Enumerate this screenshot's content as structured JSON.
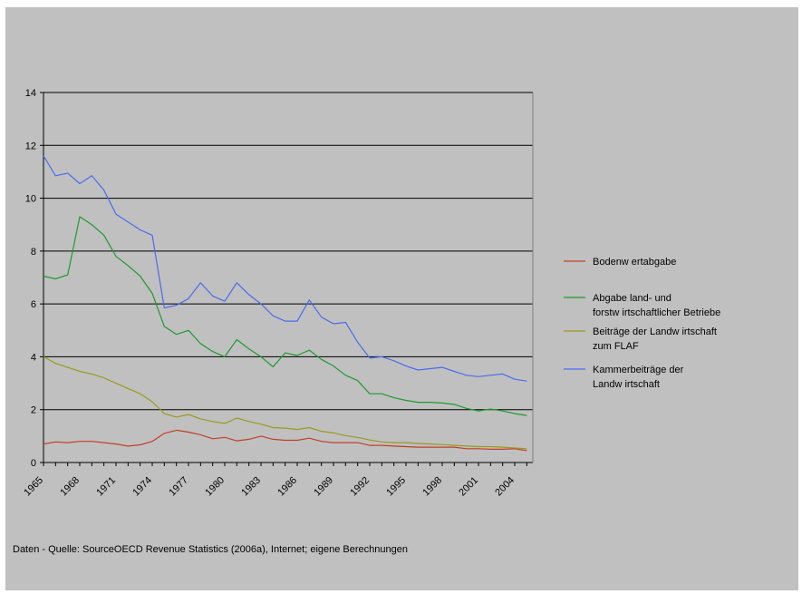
{
  "chart_data": {
    "type": "line",
    "ylim": [
      0,
      14
    ],
    "y_ticks": [
      0,
      2,
      4,
      6,
      8,
      10,
      12,
      14
    ],
    "x": [
      1965,
      1966,
      1967,
      1968,
      1969,
      1970,
      1971,
      1972,
      1973,
      1974,
      1975,
      1976,
      1977,
      1978,
      1979,
      1980,
      1981,
      1982,
      1983,
      1984,
      1985,
      1986,
      1987,
      1988,
      1989,
      1990,
      1991,
      1992,
      1993,
      1994,
      1995,
      1996,
      1997,
      1998,
      1999,
      2000,
      2001,
      2002,
      2003,
      2004,
      2005
    ],
    "x_tick_labels": [
      "1965",
      "1968",
      "1971",
      "1974",
      "1977",
      "1980",
      "1983",
      "1986",
      "1989",
      "1992",
      "1995",
      "1998",
      "2001",
      "2004"
    ],
    "grid": "horizontal",
    "legend_position": "right",
    "series": [
      {
        "name": "Bodenw ertabgabe",
        "color": "#c0402a",
        "values": [
          0.7,
          0.78,
          0.75,
          0.8,
          0.8,
          0.75,
          0.7,
          0.62,
          0.67,
          0.8,
          1.1,
          1.22,
          1.15,
          1.05,
          0.9,
          0.95,
          0.82,
          0.88,
          1.0,
          0.88,
          0.84,
          0.84,
          0.92,
          0.8,
          0.75,
          0.75,
          0.75,
          0.65,
          0.65,
          0.62,
          0.6,
          0.58,
          0.58,
          0.58,
          0.58,
          0.52,
          0.52,
          0.5,
          0.5,
          0.52,
          0.45
        ]
      },
      {
        "name": "Abgabe land- und forstw irtschaftlicher Betriebe",
        "color": "#1f9a2e",
        "values": [
          7.05,
          6.95,
          7.1,
          9.3,
          9.0,
          8.6,
          7.8,
          7.45,
          7.05,
          6.4,
          5.15,
          4.85,
          5.0,
          4.5,
          4.2,
          4.0,
          4.65,
          4.3,
          4.0,
          3.62,
          4.15,
          4.05,
          4.25,
          3.9,
          3.65,
          3.3,
          3.1,
          2.6,
          2.6,
          2.45,
          2.35,
          2.28,
          2.28,
          2.25,
          2.2,
          2.05,
          1.95,
          2.02,
          1.95,
          1.85,
          1.78
        ]
      },
      {
        "name": "Beiträge der Landw irtschaft zum FLAF",
        "color": "#9a9a1e",
        "values": [
          4.0,
          3.75,
          3.6,
          3.45,
          3.35,
          3.2,
          3.0,
          2.8,
          2.6,
          2.3,
          1.85,
          1.72,
          1.82,
          1.65,
          1.55,
          1.48,
          1.68,
          1.55,
          1.45,
          1.32,
          1.3,
          1.25,
          1.32,
          1.18,
          1.12,
          1.02,
          0.95,
          0.85,
          0.78,
          0.75,
          0.75,
          0.72,
          0.7,
          0.68,
          0.65,
          0.62,
          0.6,
          0.6,
          0.58,
          0.55,
          0.52
        ]
      },
      {
        "name": "Kammerbeiträge der Landw irtschaft",
        "color": "#4a6cf0",
        "values": [
          11.6,
          10.85,
          10.95,
          10.55,
          10.85,
          10.3,
          9.4,
          9.1,
          8.8,
          8.6,
          5.85,
          5.95,
          6.2,
          6.8,
          6.3,
          6.1,
          6.8,
          6.35,
          6.0,
          5.55,
          5.35,
          5.35,
          6.15,
          5.5,
          5.25,
          5.3,
          4.55,
          3.95,
          4.0,
          3.85,
          3.65,
          3.5,
          3.55,
          3.6,
          3.45,
          3.3,
          3.25,
          3.3,
          3.35,
          3.15,
          3.08
        ]
      }
    ]
  },
  "legend": {
    "item1": [
      "Bodenw ertabgabe"
    ],
    "item2": [
      "Abgabe land- und",
      "forstw irtschaftlicher Betriebe"
    ],
    "item3": [
      "Beiträge der Landw irtschaft",
      "zum FLAF"
    ],
    "item4": [
      "Kammerbeiträge der",
      "Landw irtschaft"
    ]
  },
  "source_note": "Daten - Quelle: SourceOECD Revenue Statistics (2006a), Internet; eigene Berechnungen"
}
